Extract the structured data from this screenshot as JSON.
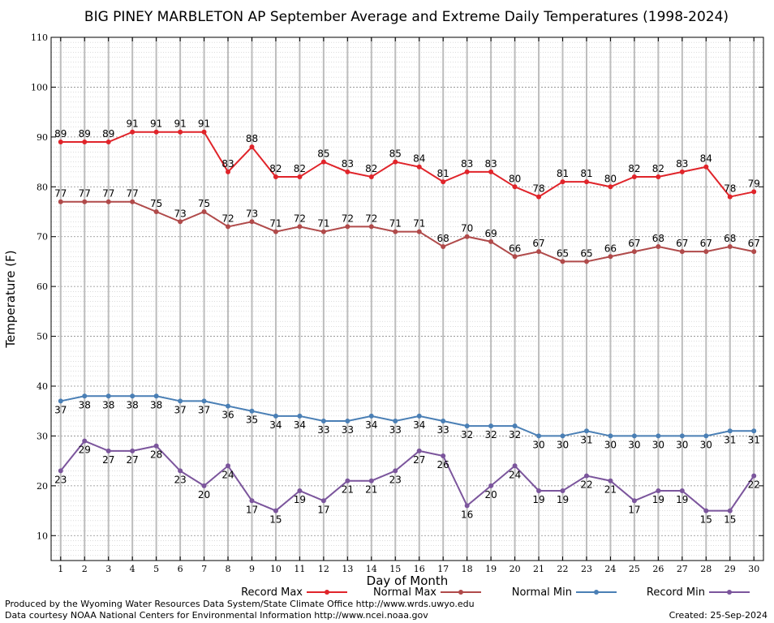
{
  "chart_data": {
    "type": "line",
    "title": "BIG PINEY MARBLETON AP September Average and Extreme Daily Temperatures (1998-2024)",
    "xlabel": "Day of Month",
    "ylabel": "Temperature (F)",
    "xlim": [
      0.6,
      30.4
    ],
    "ylim": [
      5,
      110
    ],
    "yticks": [
      10,
      20,
      30,
      40,
      50,
      60,
      70,
      80,
      90,
      100,
      110
    ],
    "x": [
      1,
      2,
      3,
      4,
      5,
      6,
      7,
      8,
      9,
      10,
      11,
      12,
      13,
      14,
      15,
      16,
      17,
      18,
      19,
      20,
      21,
      22,
      23,
      24,
      25,
      26,
      27,
      28,
      29,
      30
    ],
    "grid": true,
    "legend_position": "bottom",
    "series": [
      {
        "name": "Record Max",
        "color": "#e0242a",
        "label_side": "above",
        "values": [
          89,
          89,
          89,
          91,
          91,
          91,
          91,
          83,
          88,
          82,
          82,
          85,
          83,
          82,
          85,
          84,
          81,
          83,
          83,
          80,
          78,
          81,
          81,
          80,
          82,
          82,
          83,
          84,
          78,
          79
        ]
      },
      {
        "name": "Normal Max",
        "color": "#b04a4a",
        "label_side": "above",
        "values": [
          77,
          77,
          77,
          77,
          75,
          73,
          75,
          72,
          73,
          71,
          72,
          71,
          72,
          72,
          71,
          71,
          68,
          70,
          69,
          66,
          67,
          65,
          65,
          66,
          67,
          68,
          67,
          67,
          68,
          67
        ]
      },
      {
        "name": "Normal Min",
        "color": "#4a7fb5",
        "label_side": "below",
        "values": [
          37,
          38,
          38,
          38,
          38,
          37,
          37,
          36,
          35,
          34,
          34,
          33,
          33,
          34,
          33,
          34,
          33,
          32,
          32,
          32,
          30,
          30,
          31,
          30,
          30,
          30,
          30,
          30,
          31,
          31
        ]
      },
      {
        "name": "Record Min",
        "color": "#7b559c",
        "label_side": "below",
        "values": [
          23,
          29,
          27,
          27,
          28,
          23,
          20,
          24,
          17,
          15,
          19,
          17,
          21,
          21,
          23,
          27,
          26,
          16,
          20,
          24,
          19,
          19,
          22,
          21,
          17,
          19,
          19,
          15,
          15,
          22
        ]
      }
    ]
  },
  "footer": {
    "produced_by": "Produced by the Wyoming Water Resources Data System/State Climate Office http://www.wrds.uwyo.edu",
    "courtesy": "Data courtesy NOAA National Centers for Environmental Information http://www.ncei.noaa.gov",
    "created": "Created:  25-Sep-2024"
  }
}
